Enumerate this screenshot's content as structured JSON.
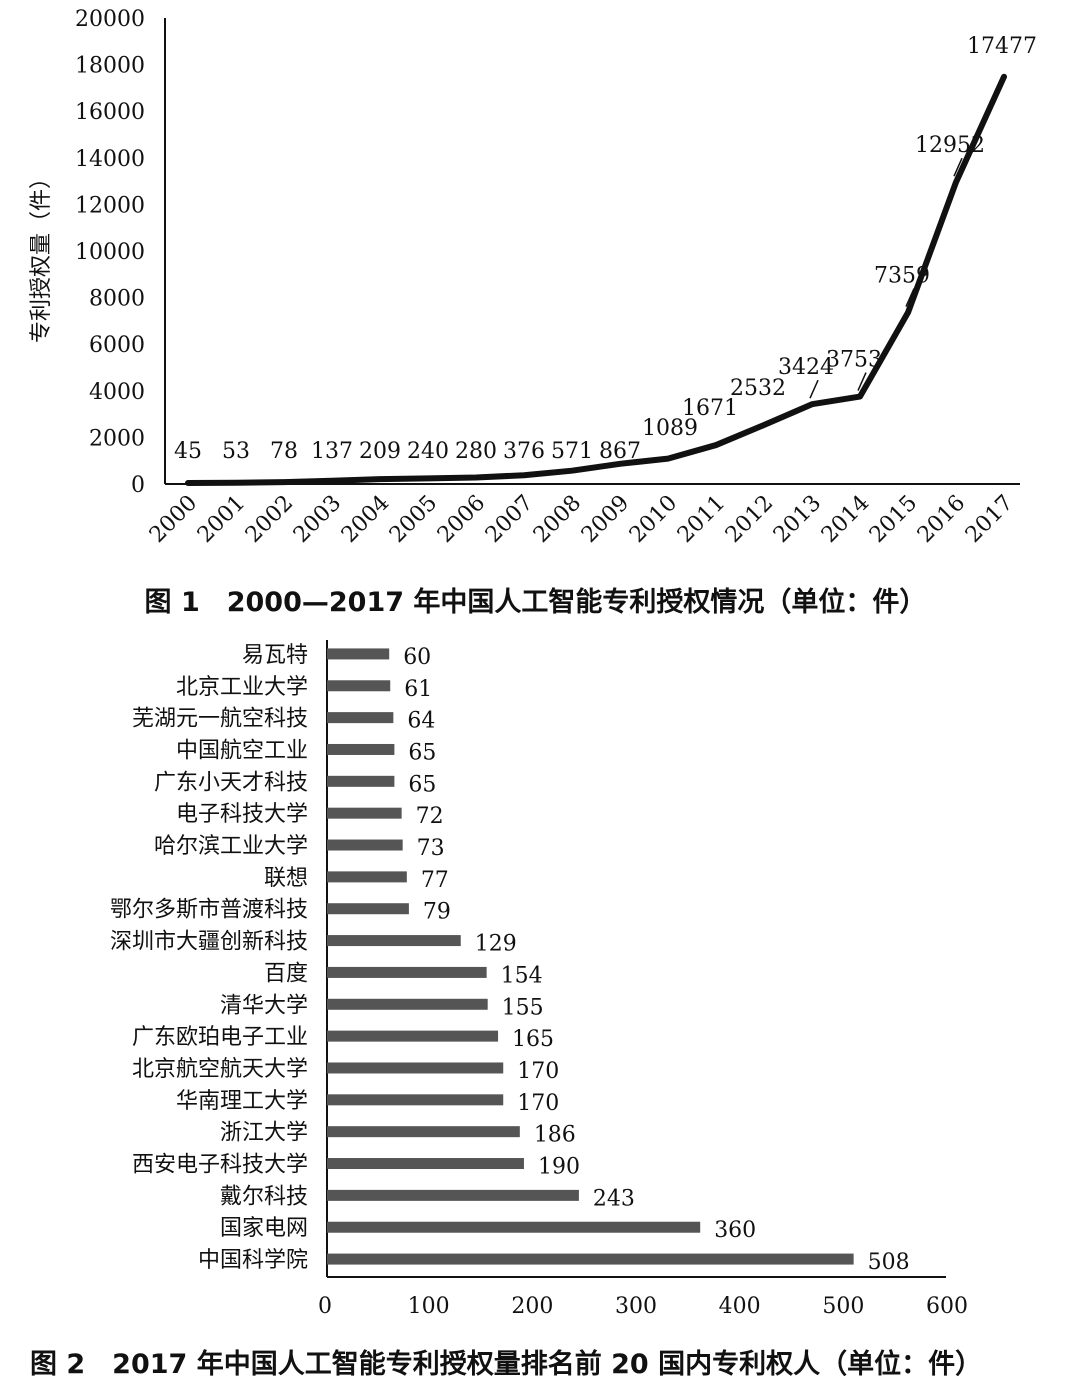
{
  "figure1": {
    "caption": "图 1　2000—2017 年中国人工智能专利授权情况（单位：件）",
    "chart_data": {
      "type": "line",
      "x": [
        "2000",
        "2001",
        "2002",
        "2003",
        "2004",
        "2005",
        "2006",
        "2007",
        "2008",
        "2009",
        "2010",
        "2011",
        "2012",
        "2013",
        "2014",
        "2015",
        "2016",
        "2017"
      ],
      "values": [
        45,
        53,
        78,
        137,
        209,
        240,
        280,
        376,
        571,
        867,
        1089,
        1671,
        2532,
        3424,
        3753,
        7359,
        12952,
        17477
      ],
      "ylabel": "专利授权量（件）",
      "ylim": [
        0,
        20000
      ],
      "yticks": [
        "0",
        "2000",
        "4000",
        "6000",
        "8000",
        "10000",
        "12000",
        "14000",
        "16000",
        "18000",
        "20000"
      ],
      "grid": false,
      "line_color": "#111111"
    }
  },
  "figure2": {
    "caption": "图 2　2017 年中国人工智能专利授权量排名前 20 国内专利权人（单位：件）",
    "chart_data": {
      "type": "bar",
      "orientation": "horizontal",
      "categories": [
        "易瓦特",
        "北京工业大学",
        "芜湖元一航空科技",
        "中国航空工业",
        "广东小天才科技",
        "电子科技大学",
        "哈尔滨工业大学",
        "联想",
        "鄂尔多斯市普渡科技",
        "深圳市大疆创新科技",
        "百度",
        "清华大学",
        "广东欧珀电子工业",
        "北京航空航天大学",
        "华南理工大学",
        "浙江大学",
        "西安电子科技大学",
        "戴尔科技",
        "国家电网",
        "中国科学院"
      ],
      "values": [
        60,
        61,
        64,
        65,
        65,
        72,
        73,
        77,
        79,
        129,
        154,
        155,
        165,
        170,
        170,
        186,
        190,
        243,
        360,
        508
      ],
      "xlim": [
        0,
        600
      ],
      "xticks": [
        "0",
        "100",
        "200",
        "300",
        "400",
        "500",
        "600"
      ],
      "grid": false,
      "bar_color": "#555555"
    }
  }
}
